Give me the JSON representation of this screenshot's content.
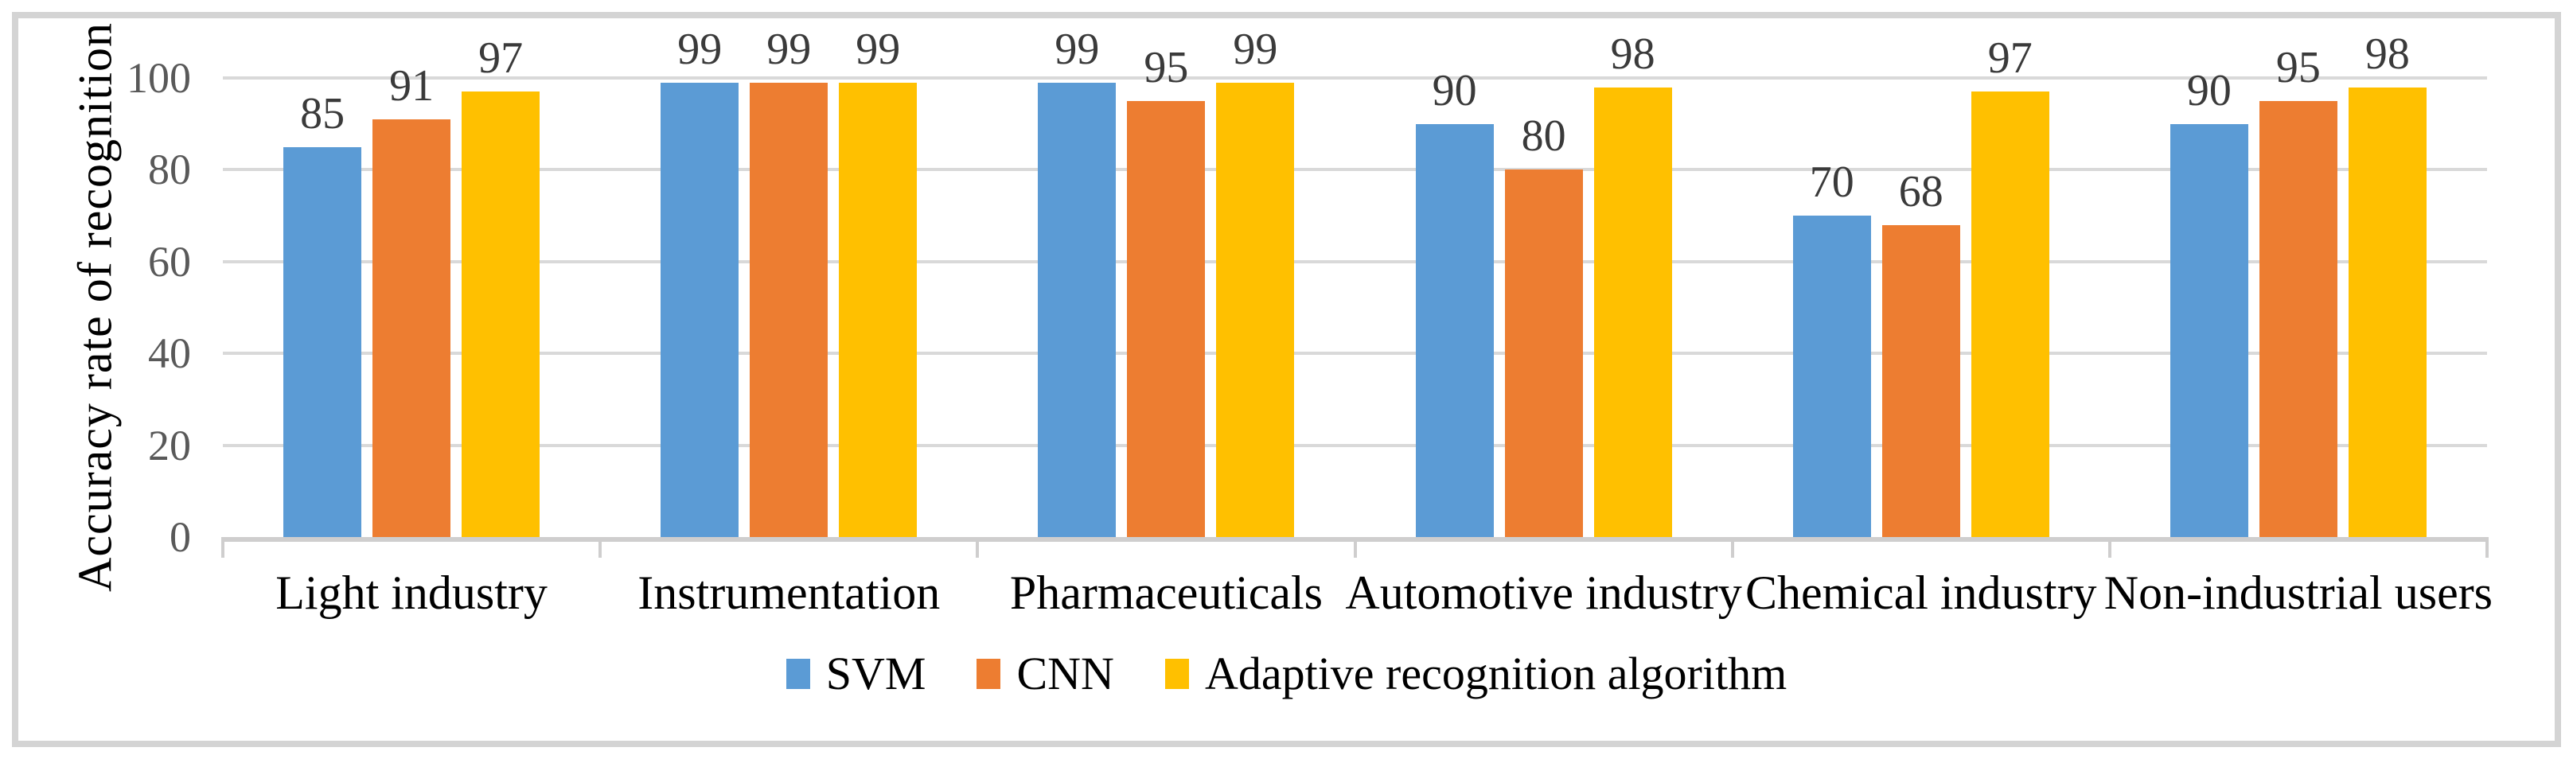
{
  "chart_data": {
    "type": "bar",
    "title": "",
    "categories": [
      "Light industry",
      "Instrumentation",
      "Pharmaceuticals",
      "Automotive industry",
      "Chemical industry",
      "Non-industrial users"
    ],
    "series": [
      {
        "name": "SVM",
        "color": "#5B9BD5",
        "values": [
          85,
          99,
          99,
          90,
          70,
          90
        ]
      },
      {
        "name": "CNN",
        "color": "#ED7D31",
        "values": [
          91,
          99,
          95,
          80,
          68,
          95
        ]
      },
      {
        "name": "Adaptive recognition algorithm",
        "color": "#FFC000",
        "values": [
          97,
          99,
          99,
          98,
          97,
          98
        ]
      }
    ],
    "xlabel": "",
    "ylabel": "Accuracy rate of recognition",
    "y_ticks": [
      0,
      20,
      40,
      60,
      80,
      100
    ],
    "ylim": [
      0,
      100
    ],
    "grid": true,
    "data_labels": true,
    "legend_position": "bottom"
  },
  "colors": {
    "gridline": "#d9d9d9",
    "axis_line": "#cfcece",
    "tick_label": "#595959",
    "data_label": "#3a3a3a",
    "text": "#000000",
    "frame_border": "#d4d4d4",
    "background": "#ffffff"
  }
}
